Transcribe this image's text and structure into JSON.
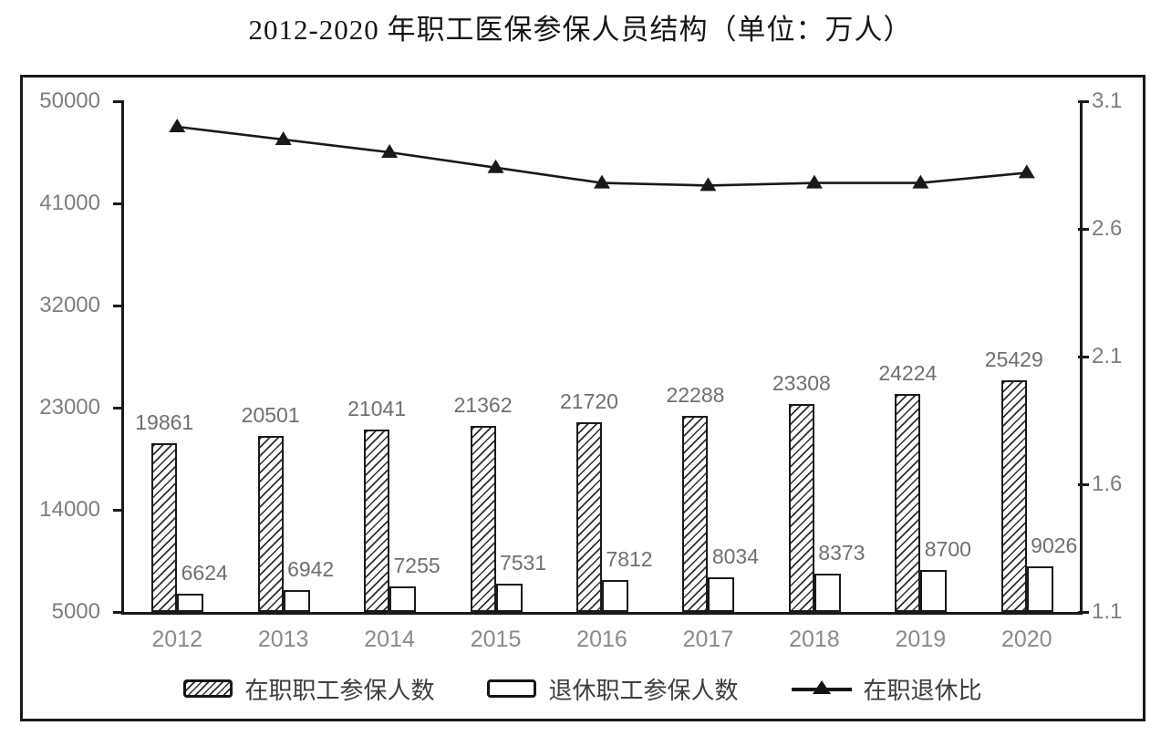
{
  "title": "2012-2020 年职工医保参保人员结构（单位：万人）",
  "colors": {
    "ink": "#191919",
    "axis_label_gray": "#7d7d7d",
    "data_label_gray": "#6f6f6f",
    "legend_text": "#3d3d3d"
  },
  "chart_data": {
    "type": "bar",
    "subtype": "bar-line-combo",
    "title": "2012-2020 年职工医保参保人员结构（单位：万人）",
    "categories": [
      "2012",
      "2013",
      "2014",
      "2015",
      "2016",
      "2017",
      "2018",
      "2019",
      "2020"
    ],
    "series": [
      {
        "name": "在职职工参保人数",
        "type": "bar",
        "style": "hatched",
        "axis": "left",
        "values": [
          19861,
          20501,
          21041,
          21362,
          21720,
          22288,
          23308,
          24224,
          25429
        ]
      },
      {
        "name": "退休职工参保人数",
        "type": "bar",
        "style": "white",
        "axis": "left",
        "values": [
          6624,
          6942,
          7255,
          7531,
          7812,
          8034,
          8373,
          8700,
          9026
        ]
      },
      {
        "name": "在职退休比",
        "type": "line",
        "style": "black-triangle-markers",
        "axis": "right",
        "values": [
          3.0,
          2.95,
          2.9,
          2.84,
          2.78,
          2.77,
          2.78,
          2.78,
          2.82
        ]
      }
    ],
    "left_axis": {
      "min": 5000,
      "max": 50000,
      "ticks": [
        5000,
        14000,
        23000,
        32000,
        41000,
        50000
      ]
    },
    "right_axis": {
      "min": 1.1,
      "max": 3.1,
      "ticks": [
        1.1,
        1.6,
        2.1,
        2.6,
        3.1
      ]
    },
    "grid": false,
    "legend_position": "bottom"
  }
}
